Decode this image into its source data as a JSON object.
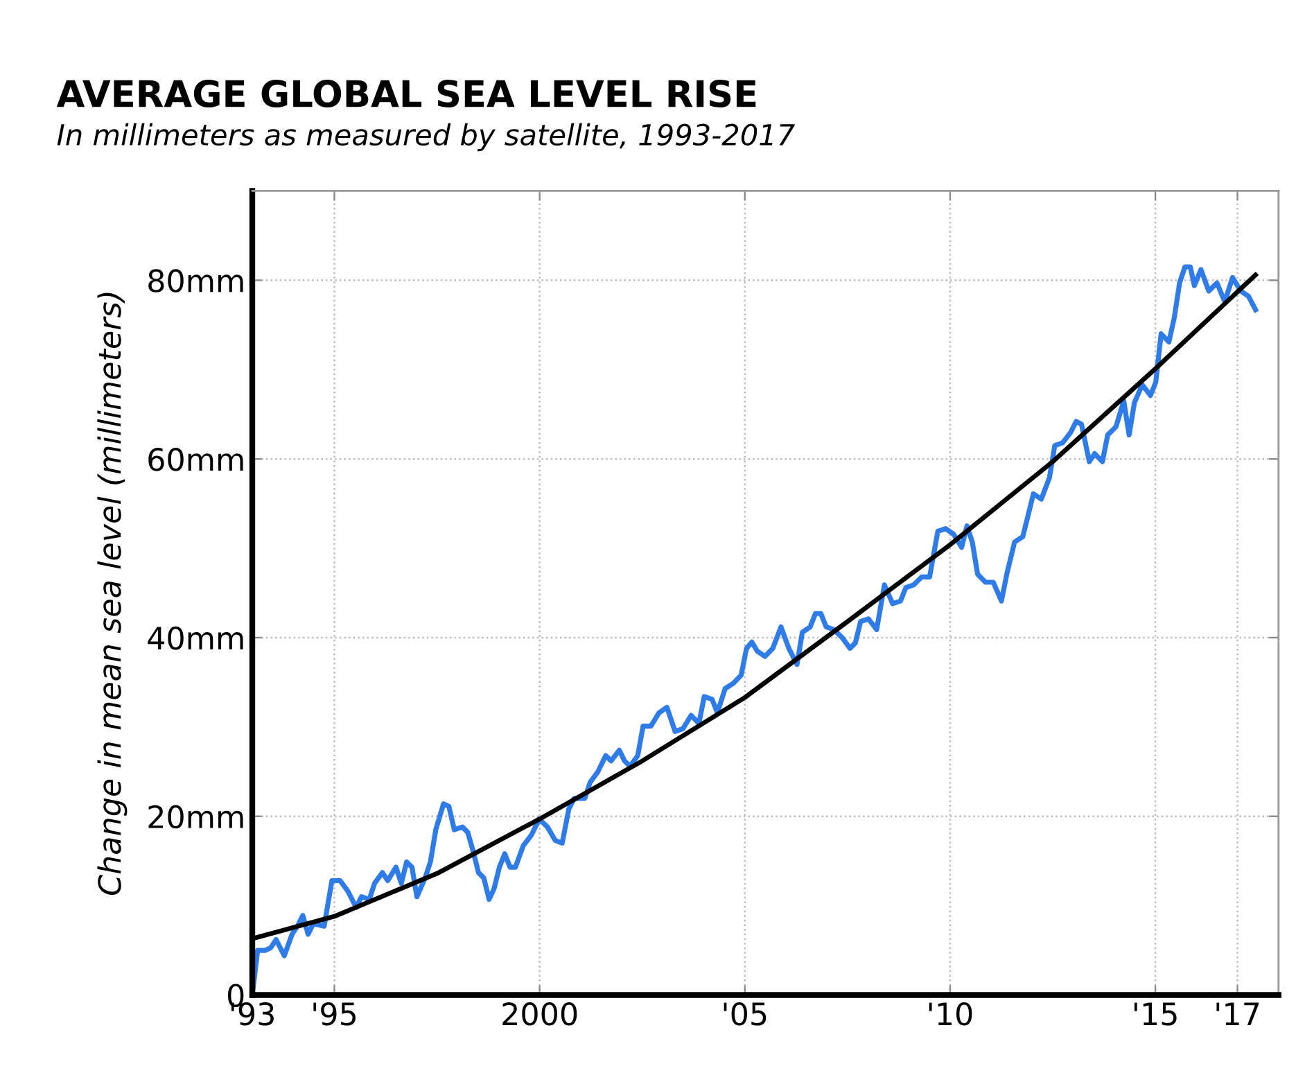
{
  "chart_data": {
    "type": "line",
    "title": "AVERAGE GLOBAL SEA LEVEL RISE",
    "subtitle": "In millimeters as measured by satellite, 1993-2017",
    "ylabel": "Change in mean sea level (millimeters)",
    "xlim": [
      1993,
      2018
    ],
    "xticks": [
      {
        "value": 1993,
        "label": "'93"
      },
      {
        "value": 1995,
        "label": "'95"
      },
      2000,
      {
        "value": 2005,
        "label": "'05"
      },
      {
        "value": 2010,
        "label": "'10"
      },
      {
        "value": 2015,
        "label": "'15"
      },
      {
        "value": 2017,
        "label": "'17"
      }
    ],
    "ylim": [
      0,
      90
    ],
    "yticks": [
      0,
      {
        "value": 20,
        "label": "20mm"
      },
      {
        "value": 40,
        "label": "40mm"
      },
      {
        "value": 60,
        "label": "60mm"
      },
      {
        "value": 80,
        "label": "80mm"
      }
    ],
    "grid": true,
    "legend": false,
    "marker": "none",
    "line_style": "solid",
    "series": [
      {
        "color": "#2f7be8",
        "x": [
          1993.0,
          1993.13,
          1993.32,
          1993.45,
          1993.58,
          1993.78,
          1993.97,
          1994.1,
          1994.23,
          1994.36,
          1994.49,
          1994.75,
          1994.94,
          1995.14,
          1995.33,
          1995.53,
          1995.66,
          1995.85,
          1995.98,
          1996.17,
          1996.3,
          1996.5,
          1996.63,
          1996.76,
          1996.89,
          1997.01,
          1997.21,
          1997.34,
          1997.47,
          1997.66,
          1997.79,
          1997.92,
          1998.12,
          1998.25,
          1998.38,
          1998.51,
          1998.64,
          1998.77,
          1998.89,
          1999.02,
          1999.15,
          1999.28,
          1999.41,
          1999.6,
          1999.8,
          1999.99,
          2000.19,
          2000.38,
          2000.55,
          2000.71,
          2000.84,
          2001.1,
          2001.23,
          2001.42,
          2001.61,
          2001.74,
          2001.94,
          2002.07,
          2002.2,
          2002.39,
          2002.52,
          2002.71,
          2002.91,
          2003.1,
          2003.3,
          2003.49,
          2003.69,
          2003.88,
          2004.01,
          2004.2,
          2004.33,
          2004.52,
          2004.72,
          2004.91,
          2005.04,
          2005.17,
          2005.3,
          2005.49,
          2005.68,
          2005.88,
          2006.07,
          2006.27,
          2006.4,
          2006.59,
          2006.72,
          2006.85,
          2006.98,
          2007.17,
          2007.37,
          2007.56,
          2007.69,
          2007.82,
          2008.01,
          2008.21,
          2008.4,
          2008.6,
          2008.79,
          2008.92,
          2009.11,
          2009.31,
          2009.5,
          2009.7,
          2009.89,
          2010.08,
          2010.28,
          2010.41,
          2010.54,
          2010.67,
          2010.86,
          2011.05,
          2011.25,
          2011.38,
          2011.57,
          2011.77,
          2011.9,
          2012.03,
          2012.22,
          2012.42,
          2012.55,
          2012.74,
          2012.94,
          2013.07,
          2013.2,
          2013.39,
          2013.52,
          2013.71,
          2013.84,
          2014.04,
          2014.23,
          2014.36,
          2014.49,
          2014.68,
          2014.88,
          2015.01,
          2015.14,
          2015.33,
          2015.46,
          2015.59,
          2015.72,
          2015.85,
          2015.95,
          2016.11,
          2016.3,
          2016.5,
          2016.69,
          2016.88,
          2017.08,
          2017.27,
          2017.44
        ],
        "values": [
          0,
          5.0,
          5.0,
          5.3,
          6.2,
          4.4,
          6.8,
          7.7,
          8.9,
          6.8,
          8.0,
          7.7,
          12.8,
          12.8,
          11.6,
          9.8,
          11.0,
          10.7,
          12.5,
          13.7,
          12.8,
          14.3,
          12.5,
          14.9,
          14.3,
          11.0,
          13.1,
          14.9,
          18.5,
          21.4,
          21.1,
          18.5,
          18.8,
          18.2,
          16.1,
          13.7,
          13.1,
          10.7,
          11.9,
          14.3,
          15.8,
          14.3,
          14.3,
          16.7,
          17.9,
          19.7,
          18.8,
          17.3,
          17.0,
          20.8,
          22.0,
          22.0,
          23.8,
          25.0,
          26.8,
          26.2,
          27.4,
          26.2,
          25.6,
          26.8,
          30.1,
          30.1,
          31.6,
          32.2,
          29.5,
          29.8,
          31.3,
          30.4,
          33.4,
          33.1,
          31.6,
          34.3,
          34.9,
          35.8,
          38.8,
          39.5,
          38.5,
          37.9,
          38.8,
          41.2,
          38.8,
          37.0,
          40.6,
          41.2,
          42.7,
          42.7,
          41.2,
          40.9,
          40.0,
          38.8,
          39.4,
          41.8,
          42.1,
          40.9,
          45.9,
          43.8,
          44.1,
          45.6,
          45.9,
          46.8,
          46.8,
          51.9,
          52.2,
          51.6,
          50.1,
          52.5,
          50.7,
          47.1,
          46.2,
          46.2,
          44.1,
          47.1,
          50.7,
          51.3,
          53.7,
          56.1,
          55.5,
          57.9,
          61.5,
          61.8,
          63.0,
          64.2,
          63.9,
          59.7,
          60.6,
          59.7,
          62.7,
          63.6,
          66.5,
          62.7,
          66.3,
          68.3,
          67.1,
          68.6,
          74.0,
          73.1,
          75.8,
          79.7,
          81.5,
          81.5,
          79.4,
          81.2,
          78.8,
          79.7,
          77.6,
          80.3,
          78.8,
          78.2,
          76.7
        ]
      },
      {
        "color": "#000000",
        "x": [
          1993,
          1995,
          1997.5,
          2000,
          2002.5,
          2005,
          2007.5,
          2010,
          2012.5,
          2015,
          2017.44
        ],
        "values": [
          6.3,
          8.8,
          13.6,
          19.7,
          26.2,
          33.3,
          41.8,
          50.4,
          59.7,
          70.1,
          80.6
        ]
      }
    ]
  }
}
